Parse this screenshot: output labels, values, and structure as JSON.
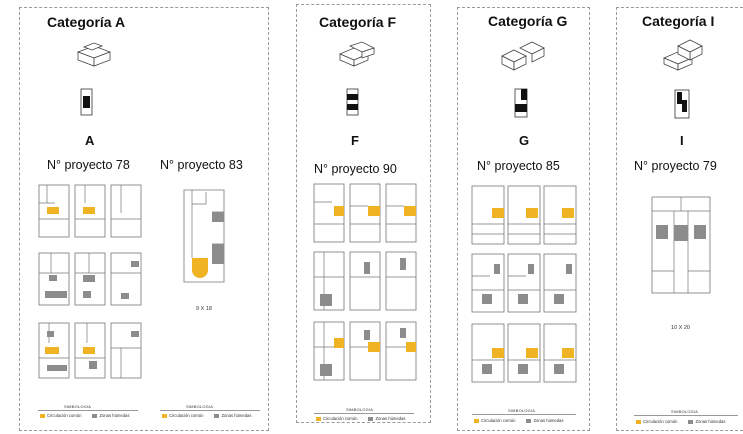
{
  "legend": {
    "title": "SIMBOLOGIA",
    "circulation": "Circulación común",
    "wet": "Zonas húmedas"
  },
  "colors": {
    "circulation": "#f0b323",
    "wet_zones": "#8c8c8c"
  },
  "panels": [
    {
      "title": "Categoría A",
      "letter": "A",
      "projects": [
        "N° proyecto 78",
        "N° proyecto 83"
      ],
      "dimension": "9 X 18"
    },
    {
      "title": "Categoría F",
      "letter": "F",
      "projects": [
        "N° proyecto 90"
      ]
    },
    {
      "title": "Categoría G",
      "letter": "G",
      "projects": [
        "N° proyecto 85"
      ]
    },
    {
      "title": "Categoría I",
      "letter": "I",
      "projects": [
        "N° proyecto 79"
      ],
      "dimension": "10 X 20"
    }
  ]
}
